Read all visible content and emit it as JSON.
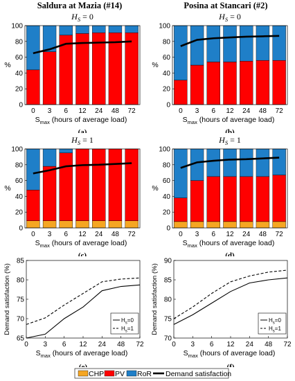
{
  "column_titles": [
    "Saldura at Mazia (#14)",
    "Posina at Stancari (#2)"
  ],
  "colors": {
    "CHP": "#f5a623",
    "PV": "#ff0000",
    "RoR": "#1f7fc8",
    "demand": "#000000"
  },
  "legend": {
    "items": [
      {
        "label": "CHP",
        "color": "#f5a623"
      },
      {
        "label": "PV",
        "color": "#ff0000"
      },
      {
        "label": "RoR",
        "color": "#1f7fc8"
      },
      {
        "label": "Demand satisfaction",
        "color": "#000000",
        "type": "line"
      }
    ]
  },
  "chart_data": [
    {
      "id": "a",
      "type": "bar",
      "panel_label": "(a)",
      "title_var": "H",
      "title_sub": "S",
      "title_val": " = 0",
      "categories": [
        "0",
        "3",
        "6",
        "12",
        "24",
        "48",
        "72"
      ],
      "xlabel_var": "S",
      "xlabel_sub": "max",
      "xlabel_rest": " (hours of average load)",
      "ylabel": "%",
      "ylim": [
        0,
        100
      ],
      "yticks": [
        0,
        20,
        40,
        60,
        80,
        100
      ],
      "series": [
        {
          "name": "CHP",
          "values": [
            0,
            0,
            0,
            0,
            0,
            0,
            0
          ]
        },
        {
          "name": "PV",
          "values": [
            44,
            67,
            88,
            90,
            91,
            91,
            91
          ]
        },
        {
          "name": "RoR",
          "values": [
            56,
            33,
            12,
            10,
            9,
            9,
            9
          ]
        }
      ],
      "line": {
        "name": "Demand satisfaction",
        "values": [
          65,
          70,
          77,
          78,
          78.5,
          79,
          80
        ]
      }
    },
    {
      "id": "b",
      "type": "bar",
      "panel_label": "(b)",
      "title_var": "H",
      "title_sub": "S",
      "title_val": " = 0",
      "categories": [
        "0",
        "3",
        "6",
        "12",
        "24",
        "48",
        "72"
      ],
      "xlabel_var": "S",
      "xlabel_sub": "max",
      "xlabel_rest": " (hours of average load)",
      "ylabel": "%",
      "ylim": [
        0,
        100
      ],
      "yticks": [
        0,
        20,
        40,
        60,
        80,
        100
      ],
      "series": [
        {
          "name": "CHP",
          "values": [
            0,
            0,
            0,
            0,
            0,
            0,
            0
          ]
        },
        {
          "name": "PV",
          "values": [
            31,
            50,
            54,
            54,
            55,
            56,
            56
          ]
        },
        {
          "name": "RoR",
          "values": [
            69,
            50,
            46,
            46,
            45,
            44,
            44
          ]
        }
      ],
      "line": {
        "name": "Demand satisfaction",
        "values": [
          74,
          82,
          84,
          85,
          86,
          86.5,
          87
        ]
      }
    },
    {
      "id": "c",
      "type": "bar",
      "panel_label": "(c)",
      "title_var": "H",
      "title_sub": "S",
      "title_val": " = 1",
      "categories": [
        "0",
        "3",
        "6",
        "12",
        "24",
        "48",
        "72"
      ],
      "xlabel_var": "S",
      "xlabel_sub": "max",
      "xlabel_rest": " (hours of average load)",
      "ylabel": "%",
      "ylim": [
        0,
        100
      ],
      "yticks": [
        0,
        20,
        40,
        60,
        80,
        100
      ],
      "series": [
        {
          "name": "CHP",
          "values": [
            9,
            9,
            9,
            9,
            9,
            9,
            9
          ]
        },
        {
          "name": "PV",
          "values": [
            39,
            69,
            86,
            91,
            91,
            91,
            91
          ]
        },
        {
          "name": "RoR",
          "values": [
            52,
            22,
            5,
            0,
            0,
            0,
            0
          ]
        }
      ],
      "line": {
        "name": "Demand satisfaction",
        "values": [
          69,
          73,
          78,
          79.5,
          80,
          81,
          82
        ]
      }
    },
    {
      "id": "d",
      "type": "bar",
      "panel_label": "(d)",
      "title_var": "H",
      "title_sub": "S",
      "title_val": " = 1",
      "categories": [
        "0",
        "3",
        "6",
        "12",
        "24",
        "48",
        "72"
      ],
      "xlabel_var": "S",
      "xlabel_sub": "max",
      "xlabel_rest": " (hours of average load)",
      "ylabel": "%",
      "ylim": [
        0,
        100
      ],
      "yticks": [
        0,
        20,
        40,
        60,
        80,
        100
      ],
      "series": [
        {
          "name": "CHP",
          "values": [
            8,
            8,
            8,
            8,
            8,
            8,
            8
          ]
        },
        {
          "name": "PV",
          "values": [
            30,
            52,
            57,
            57,
            57,
            57,
            59
          ]
        },
        {
          "name": "RoR",
          "values": [
            62,
            40,
            35,
            35,
            35,
            35,
            33
          ]
        }
      ],
      "line": {
        "name": "Demand satisfaction",
        "values": [
          76,
          83,
          85,
          86.5,
          87,
          88,
          89
        ]
      }
    },
    {
      "id": "e",
      "type": "line",
      "panel_label": "(e)",
      "x": [
        0,
        3,
        6,
        12,
        24,
        48,
        72
      ],
      "xticks": [
        "0",
        "3",
        "6",
        "12",
        "24",
        "48",
        "72"
      ],
      "xlabel_var": "S",
      "xlabel_sub": "max",
      "xlabel_rest": " (hours of average load)",
      "ylabel": "Demand satisfaction (%)",
      "ylim": [
        65,
        85
      ],
      "yticks": [
        65,
        70,
        75,
        80,
        85
      ],
      "legend_position": "right",
      "series": [
        {
          "name": "H",
          "name_sub": "s",
          "name_val": "=0",
          "dash": "solid",
          "values": [
            65,
            66,
            70,
            73,
            77.2,
            78.3,
            78.7
          ]
        },
        {
          "name": "H",
          "name_sub": "s",
          "name_val": "=1",
          "dash": "dashed",
          "values": [
            68.5,
            70.2,
            73.5,
            76.5,
            79.5,
            80.2,
            80.5
          ]
        }
      ]
    },
    {
      "id": "f",
      "type": "line",
      "panel_label": "(f)",
      "x": [
        0,
        3,
        6,
        12,
        24,
        48,
        72
      ],
      "xticks": [
        "0",
        "3",
        "6",
        "12",
        "24",
        "48",
        "72"
      ],
      "xlabel_var": "S",
      "xlabel_sub": "max",
      "xlabel_rest": " (hours of average load)",
      "ylabel": "Demand satisfaction (%)",
      "ylim": [
        70,
        90
      ],
      "yticks": [
        70,
        75,
        80,
        85,
        90
      ],
      "legend_position": "right",
      "series": [
        {
          "name": "H",
          "name_sub": "s",
          "name_val": "=0",
          "dash": "solid",
          "values": [
            73.5,
            76,
            79,
            82,
            84.2,
            85,
            85.5
          ]
        },
        {
          "name": "H",
          "name_sub": "s",
          "name_val": "=1",
          "dash": "dashed",
          "values": [
            75,
            78,
            81.5,
            84.5,
            86,
            87,
            87.5
          ]
        }
      ]
    }
  ]
}
